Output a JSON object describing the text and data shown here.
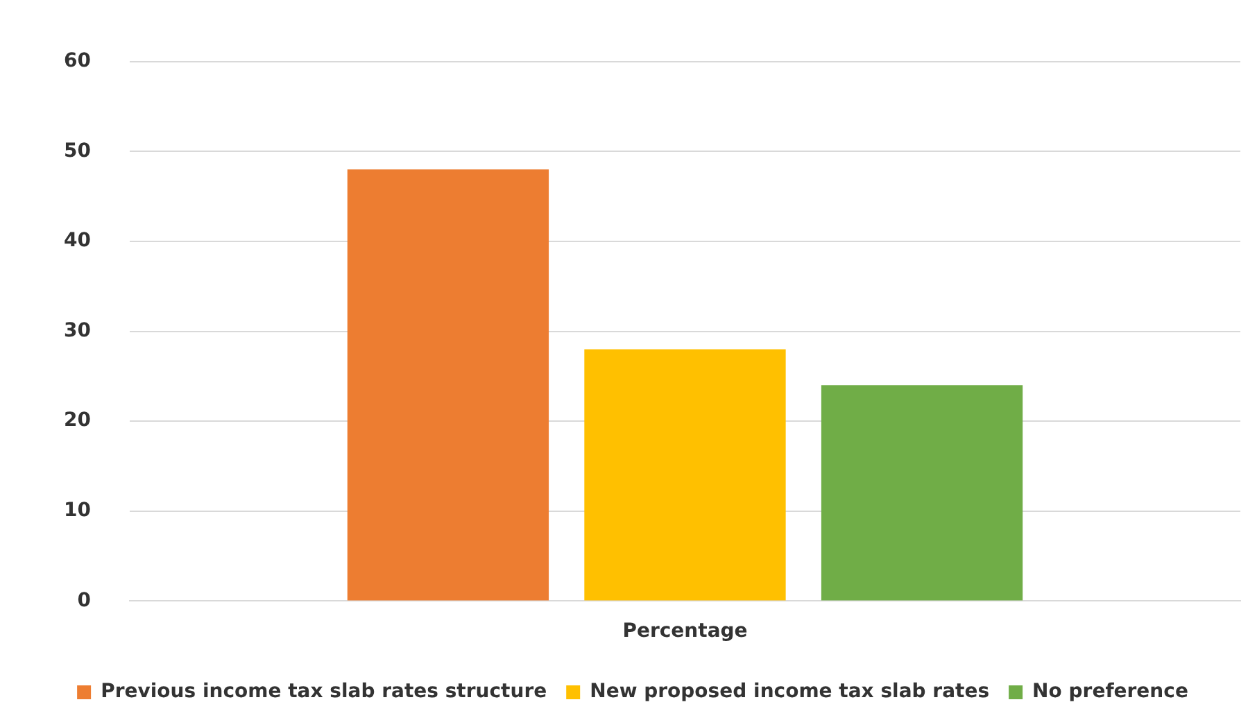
{
  "chart_data": {
    "type": "bar",
    "categories": [
      "Percentage"
    ],
    "series": [
      {
        "name": "Previous income tax slab rates structure",
        "color": "#ed7d31",
        "values": [
          48
        ]
      },
      {
        "name": "New proposed income tax slab rates",
        "color": "#ffc000",
        "values": [
          28
        ]
      },
      {
        "name": "No preference",
        "color": "#70ad47",
        "values": [
          24
        ]
      }
    ],
    "ylim": [
      0,
      60
    ],
    "yticks": [
      0,
      10,
      20,
      30,
      40,
      50,
      60
    ],
    "grid": "y",
    "legend": "bottom"
  }
}
